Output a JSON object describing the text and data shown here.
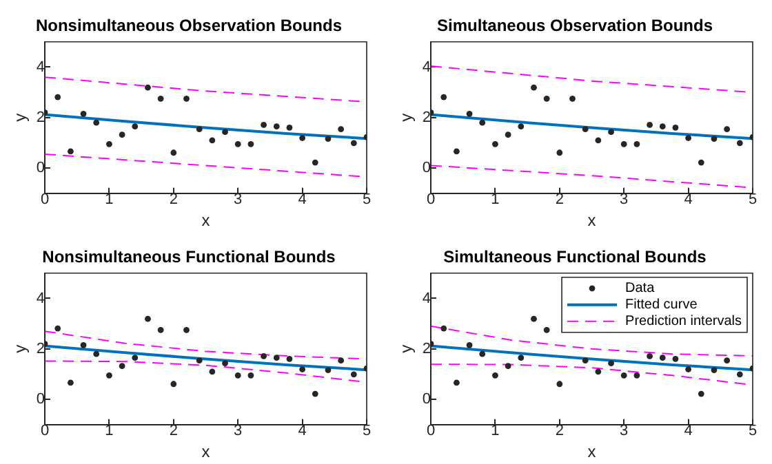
{
  "chart_data": [
    {
      "type": "scatter",
      "title": "Nonsimultaneous Observation Bounds",
      "xlabel": "x",
      "ylabel": "y",
      "x": [
        0,
        0.2,
        0.4,
        0.6,
        0.8,
        1,
        1.2,
        1.4,
        1.6,
        1.8,
        2,
        2.2,
        2.4,
        2.6,
        2.8,
        3,
        3.2,
        3.4,
        3.6,
        3.8,
        4,
        4.2,
        4.4,
        4.6,
        4.8,
        5
      ],
      "xlim": [
        0,
        5
      ],
      "xticks": [
        0,
        1,
        2,
        3,
        4,
        5
      ],
      "ylim": [
        -1,
        5
      ],
      "yticks": [
        0,
        2,
        4
      ],
      "grid": false,
      "legend": false,
      "series": [
        {
          "type": "scatter",
          "color": "#262626",
          "marker": "circle",
          "values": [
            2.2,
            2.81,
            0.66,
            2.15,
            1.8,
            0.95,
            1.32,
            1.65,
            3.19,
            2.75,
            0.61,
            2.75,
            1.54,
            1.1,
            1.43,
            0.95,
            0.95,
            1.71,
            1.65,
            1.6,
            1.19,
            0.22,
            1.16,
            1.54,
            0.99,
            1.23
          ]
        },
        {
          "type": "line",
          "color": "#0072bd",
          "line_style": "solid",
          "x": [
            0,
            1.25,
            2.5,
            3.75,
            5
          ],
          "values": [
            2.12,
            1.85,
            1.6,
            1.37,
            1.17
          ]
        },
        {
          "type": "line",
          "color": "#ff00ff",
          "line_style": "dashed",
          "x": [
            0,
            2.5,
            5
          ],
          "values": [
            3.6,
            3.05,
            2.62
          ]
        },
        {
          "type": "line",
          "color": "#ff00ff",
          "line_style": "dashed",
          "x": [
            0,
            2.5,
            5
          ],
          "values": [
            0.55,
            0.1,
            -0.35
          ]
        }
      ]
    },
    {
      "type": "scatter",
      "title": "Simultaneous Observation Bounds",
      "xlabel": "x",
      "ylabel": "y",
      "x": [
        0,
        0.2,
        0.4,
        0.6,
        0.8,
        1,
        1.2,
        1.4,
        1.6,
        1.8,
        2,
        2.2,
        2.4,
        2.6,
        2.8,
        3,
        3.2,
        3.4,
        3.6,
        3.8,
        4,
        4.2,
        4.4,
        4.6,
        4.8,
        5
      ],
      "xlim": [
        0,
        5
      ],
      "xticks": [
        0,
        1,
        2,
        3,
        4,
        5
      ],
      "ylim": [
        -1,
        5
      ],
      "yticks": [
        0,
        2,
        4
      ],
      "grid": false,
      "legend": false,
      "series": [
        {
          "type": "scatter",
          "color": "#262626",
          "marker": "circle",
          "values": [
            2.2,
            2.81,
            0.66,
            2.15,
            1.8,
            0.95,
            1.32,
            1.65,
            3.19,
            2.75,
            0.61,
            2.75,
            1.54,
            1.1,
            1.43,
            0.95,
            0.95,
            1.71,
            1.65,
            1.6,
            1.19,
            0.22,
            1.16,
            1.54,
            0.99,
            1.23
          ]
        },
        {
          "type": "line",
          "color": "#0072bd",
          "line_style": "solid",
          "x": [
            0,
            1.25,
            2.5,
            3.75,
            5
          ],
          "values": [
            2.12,
            1.85,
            1.6,
            1.37,
            1.17
          ]
        },
        {
          "type": "line",
          "color": "#ff00ff",
          "line_style": "dashed",
          "x": [
            0,
            2.5,
            5
          ],
          "values": [
            4.04,
            3.45,
            3.0
          ]
        },
        {
          "type": "line",
          "color": "#ff00ff",
          "line_style": "dashed",
          "x": [
            0,
            2.5,
            5
          ],
          "values": [
            0.1,
            -0.3,
            -0.78
          ]
        }
      ]
    },
    {
      "type": "scatter",
      "title": "Nonsimultaneous Functional Bounds",
      "xlabel": "x",
      "ylabel": "y",
      "x": [
        0,
        0.2,
        0.4,
        0.6,
        0.8,
        1,
        1.2,
        1.4,
        1.6,
        1.8,
        2,
        2.2,
        2.4,
        2.6,
        2.8,
        3,
        3.2,
        3.4,
        3.6,
        3.8,
        4,
        4.2,
        4.4,
        4.6,
        4.8,
        5
      ],
      "xlim": [
        0,
        5
      ],
      "xticks": [
        0,
        1,
        2,
        3,
        4,
        5
      ],
      "ylim": [
        -1,
        5
      ],
      "yticks": [
        0,
        2,
        4
      ],
      "grid": false,
      "legend": false,
      "series": [
        {
          "type": "scatter",
          "color": "#262626",
          "marker": "circle",
          "values": [
            2.2,
            2.81,
            0.66,
            2.15,
            1.8,
            0.95,
            1.32,
            1.65,
            3.19,
            2.75,
            0.61,
            2.75,
            1.54,
            1.1,
            1.43,
            0.95,
            0.95,
            1.71,
            1.65,
            1.6,
            1.19,
            0.22,
            1.16,
            1.54,
            0.99,
            1.23
          ]
        },
        {
          "type": "line",
          "color": "#0072bd",
          "line_style": "solid",
          "x": [
            0,
            1.25,
            2.5,
            3.75,
            5
          ],
          "values": [
            2.12,
            1.85,
            1.6,
            1.37,
            1.17
          ]
        },
        {
          "type": "line",
          "color": "#ff00ff",
          "line_style": "dashed",
          "x": [
            0,
            1.25,
            2.5,
            3.75,
            5
          ],
          "values": [
            2.7,
            2.22,
            1.9,
            1.72,
            1.6
          ]
        },
        {
          "type": "line",
          "color": "#ff00ff",
          "line_style": "dashed",
          "x": [
            0,
            1.25,
            2.5,
            3.75,
            5
          ],
          "values": [
            1.52,
            1.5,
            1.35,
            1.05,
            0.68
          ]
        }
      ]
    },
    {
      "type": "scatter",
      "title": "Simultaneous Functional Bounds",
      "xlabel": "x",
      "ylabel": "y",
      "x": [
        0,
        0.2,
        0.4,
        0.6,
        0.8,
        1,
        1.2,
        1.4,
        1.6,
        1.8,
        2,
        2.2,
        2.4,
        2.6,
        2.8,
        3,
        3.2,
        3.4,
        3.6,
        3.8,
        4,
        4.2,
        4.4,
        4.6,
        4.8,
        5
      ],
      "xlim": [
        0,
        5
      ],
      "xticks": [
        0,
        1,
        2,
        3,
        4,
        5
      ],
      "ylim": [
        -1,
        5
      ],
      "yticks": [
        0,
        2,
        4
      ],
      "grid": false,
      "legend": "top right",
      "series": [
        {
          "name": "Data",
          "color": "#262626",
          "marker": "circle",
          "values": [
            2.2,
            2.81,
            0.66,
            2.15,
            1.8,
            0.95,
            1.32,
            1.65,
            3.19,
            2.75,
            0.61,
            null,
            1.54,
            1.1,
            1.43,
            0.95,
            0.95,
            1.71,
            1.65,
            1.6,
            1.19,
            0.22,
            1.16,
            1.54,
            0.99,
            1.23
          ]
        },
        {
          "type": "line",
          "name": "Fitted curve",
          "color": "#0072bd",
          "line_style": "solid",
          "x": [
            0,
            1.25,
            2.5,
            3.75,
            5
          ],
          "values": [
            2.12,
            1.85,
            1.6,
            1.37,
            1.17
          ]
        },
        {
          "type": "line",
          "name": "Prediction intervals",
          "color": "#ff00ff",
          "line_style": "dashed",
          "x": [
            0,
            1.25,
            2.5,
            3.75,
            5
          ],
          "values": [
            2.9,
            2.35,
            2.0,
            1.8,
            1.72
          ]
        },
        {
          "type": "line",
          "color": "#ff00ff",
          "line_style": "dashed",
          "x": [
            0,
            1.25,
            2.5,
            3.75,
            5
          ],
          "values": [
            1.39,
            1.38,
            1.25,
            0.95,
            0.57
          ]
        }
      ]
    }
  ]
}
